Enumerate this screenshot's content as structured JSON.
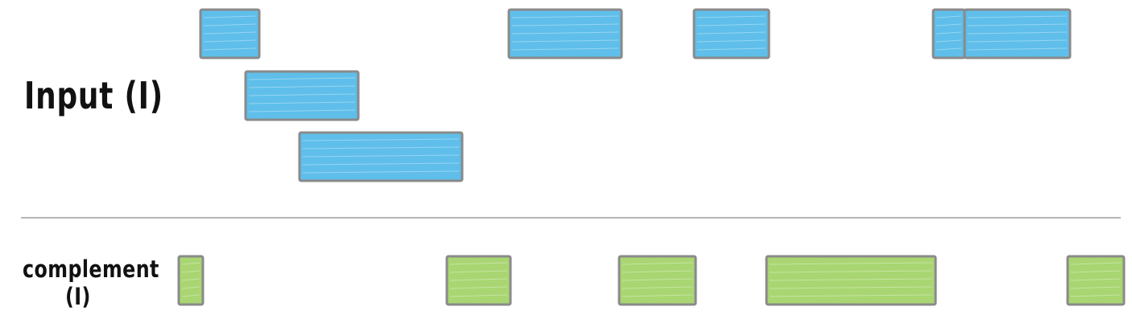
{
  "labels": {
    "input": "Input (I)",
    "complement_line1": "complement",
    "complement_line2": "(I)"
  },
  "colors": {
    "input_fill": "#5fbfea",
    "complement_fill": "#a9d672",
    "outline": "#8a8a8a",
    "divider": "#b5b5b5",
    "text": "#111111"
  },
  "chart_data": {
    "type": "interval-diagram",
    "input_intervals": [
      {
        "row": 1,
        "start": 249,
        "end": 322
      },
      {
        "row": 1,
        "start": 632,
        "end": 772
      },
      {
        "row": 1,
        "start": 862,
        "end": 955
      },
      {
        "row": 1,
        "start": 1159,
        "end": 1198
      },
      {
        "row": 1,
        "start": 1198,
        "end": 1329
      },
      {
        "row": 2,
        "start": 305,
        "end": 445
      },
      {
        "row": 3,
        "start": 372,
        "end": 574
      }
    ],
    "complement_intervals": [
      {
        "start": 222,
        "end": 252
      },
      {
        "start": 555,
        "end": 634
      },
      {
        "start": 769,
        "end": 864
      },
      {
        "start": 952,
        "end": 1162
      },
      {
        "start": 1326,
        "end": 1396
      }
    ]
  }
}
